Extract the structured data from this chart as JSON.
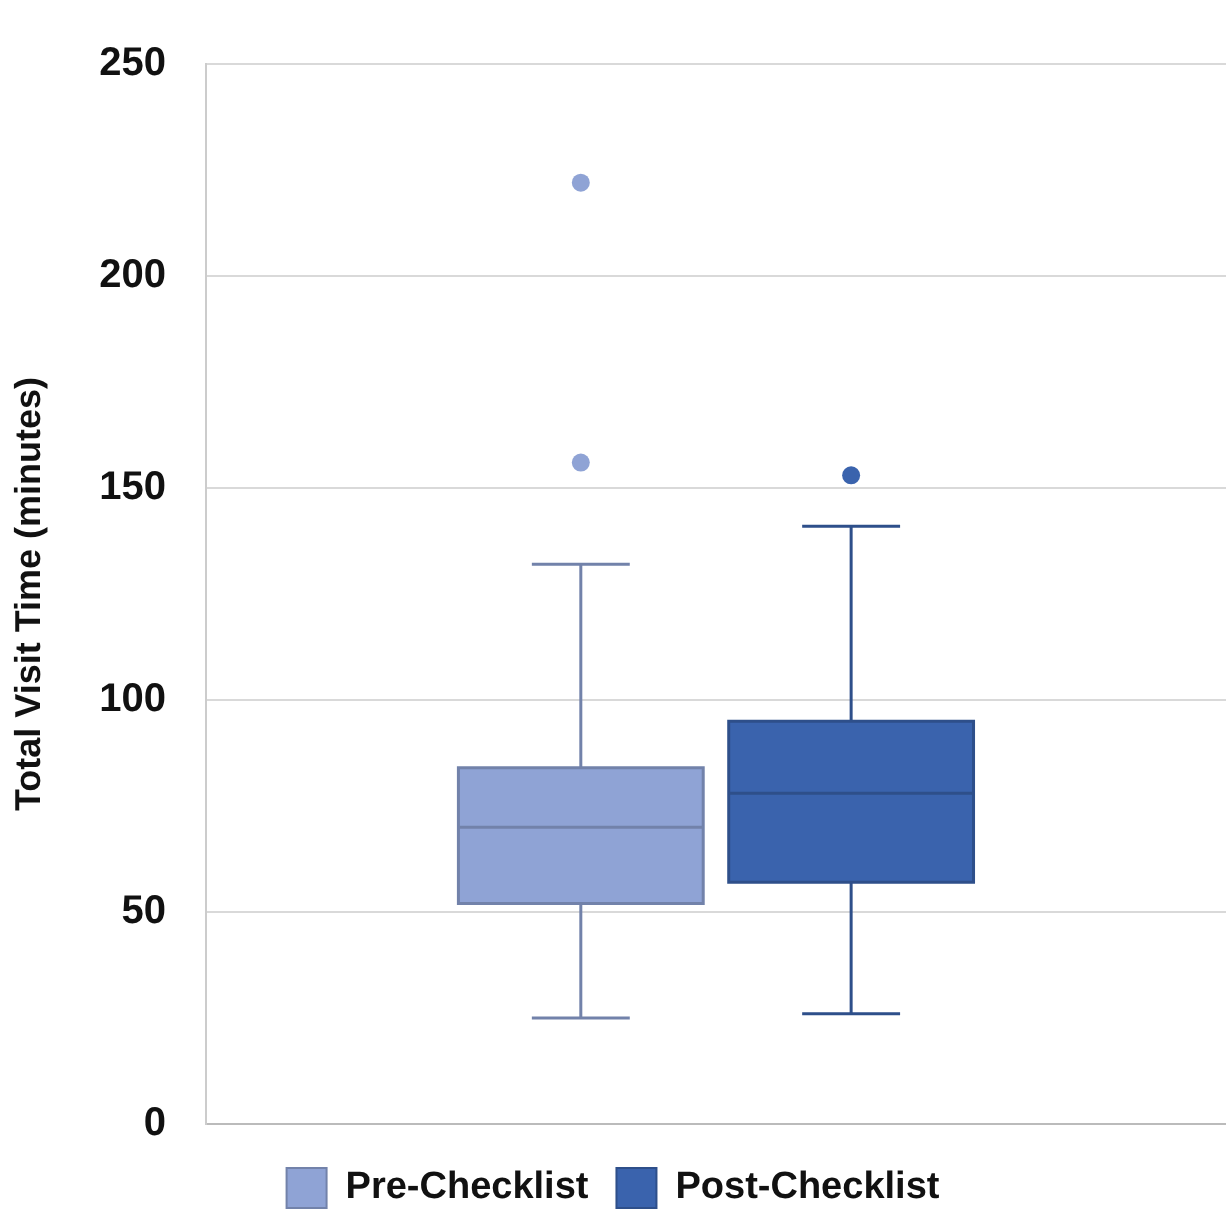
{
  "chart_data": {
    "type": "box",
    "ylabel": "Total Visit Time (minutes)",
    "categories": [
      null
    ],
    "series": [
      {
        "name": "Pre-Checklist",
        "color": "#8fa3d5",
        "boxes": [
          {
            "low": 25,
            "q1": 52,
            "median": 70,
            "q3": 84,
            "high": 132,
            "outliers": [
              156,
              222
            ]
          }
        ]
      },
      {
        "name": "Post-Checklist",
        "color": "#3a63ad",
        "boxes": [
          {
            "low": 26,
            "q1": 57,
            "median": 78,
            "q3": 95,
            "high": 141,
            "outliers": [
              153
            ]
          }
        ]
      }
    ],
    "ylim": [
      0,
      250
    ],
    "yticks": [
      0,
      50,
      100,
      150,
      200,
      250
    ],
    "grid": "y",
    "legend": "bottom"
  }
}
